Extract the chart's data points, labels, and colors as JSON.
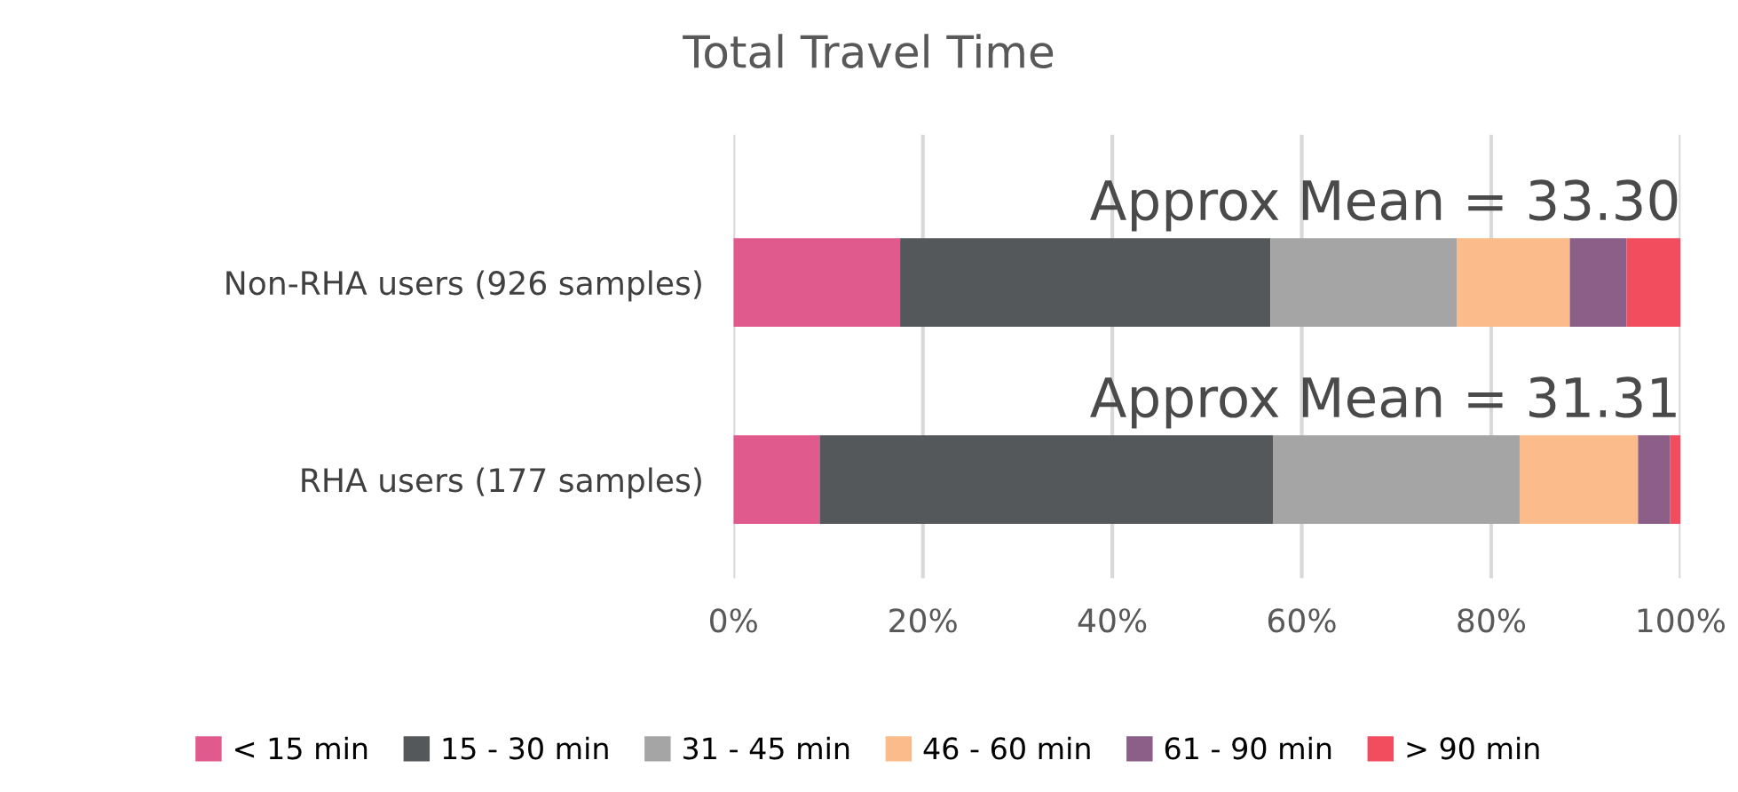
{
  "chart_data": {
    "type": "bar",
    "title": "Total Travel Time",
    "orientation": "horizontal",
    "stacked": true,
    "categories": [
      "Non-RHA users (926 samples)",
      "RHA users (177 samples)"
    ],
    "series": [
      {
        "name": "< 15 min",
        "color": "#e05a8e",
        "values": [
          17.6,
          9.1
        ]
      },
      {
        "name": "15 - 30 min",
        "color": "#55585a",
        "values": [
          39.1,
          47.9
        ]
      },
      {
        "name": "31 - 45 min",
        "color": "#a5a5a5",
        "values": [
          19.7,
          26.0
        ]
      },
      {
        "name": "46 - 60 min",
        "color": "#fbbb8a",
        "values": [
          11.9,
          12.5
        ]
      },
      {
        "name": "61 - 90 min",
        "color": "#8b5f88",
        "values": [
          6.0,
          3.4
        ]
      },
      {
        "name": "> 90 min",
        "color": "#f24d5e",
        "values": [
          5.7,
          1.1
        ]
      }
    ],
    "xlim": [
      0,
      100
    ],
    "xticks": [
      {
        "value": 0,
        "label": "0%"
      },
      {
        "value": 20,
        "label": "20%"
      },
      {
        "value": 40,
        "label": "40%"
      },
      {
        "value": 60,
        "label": "60%"
      },
      {
        "value": 80,
        "label": "80%"
      },
      {
        "value": 100,
        "label": "100%"
      }
    ],
    "annotations": [
      "Approx Mean = 33.30",
      "Approx Mean = 31.31"
    ],
    "grid": "x",
    "legend": "bottom"
  }
}
